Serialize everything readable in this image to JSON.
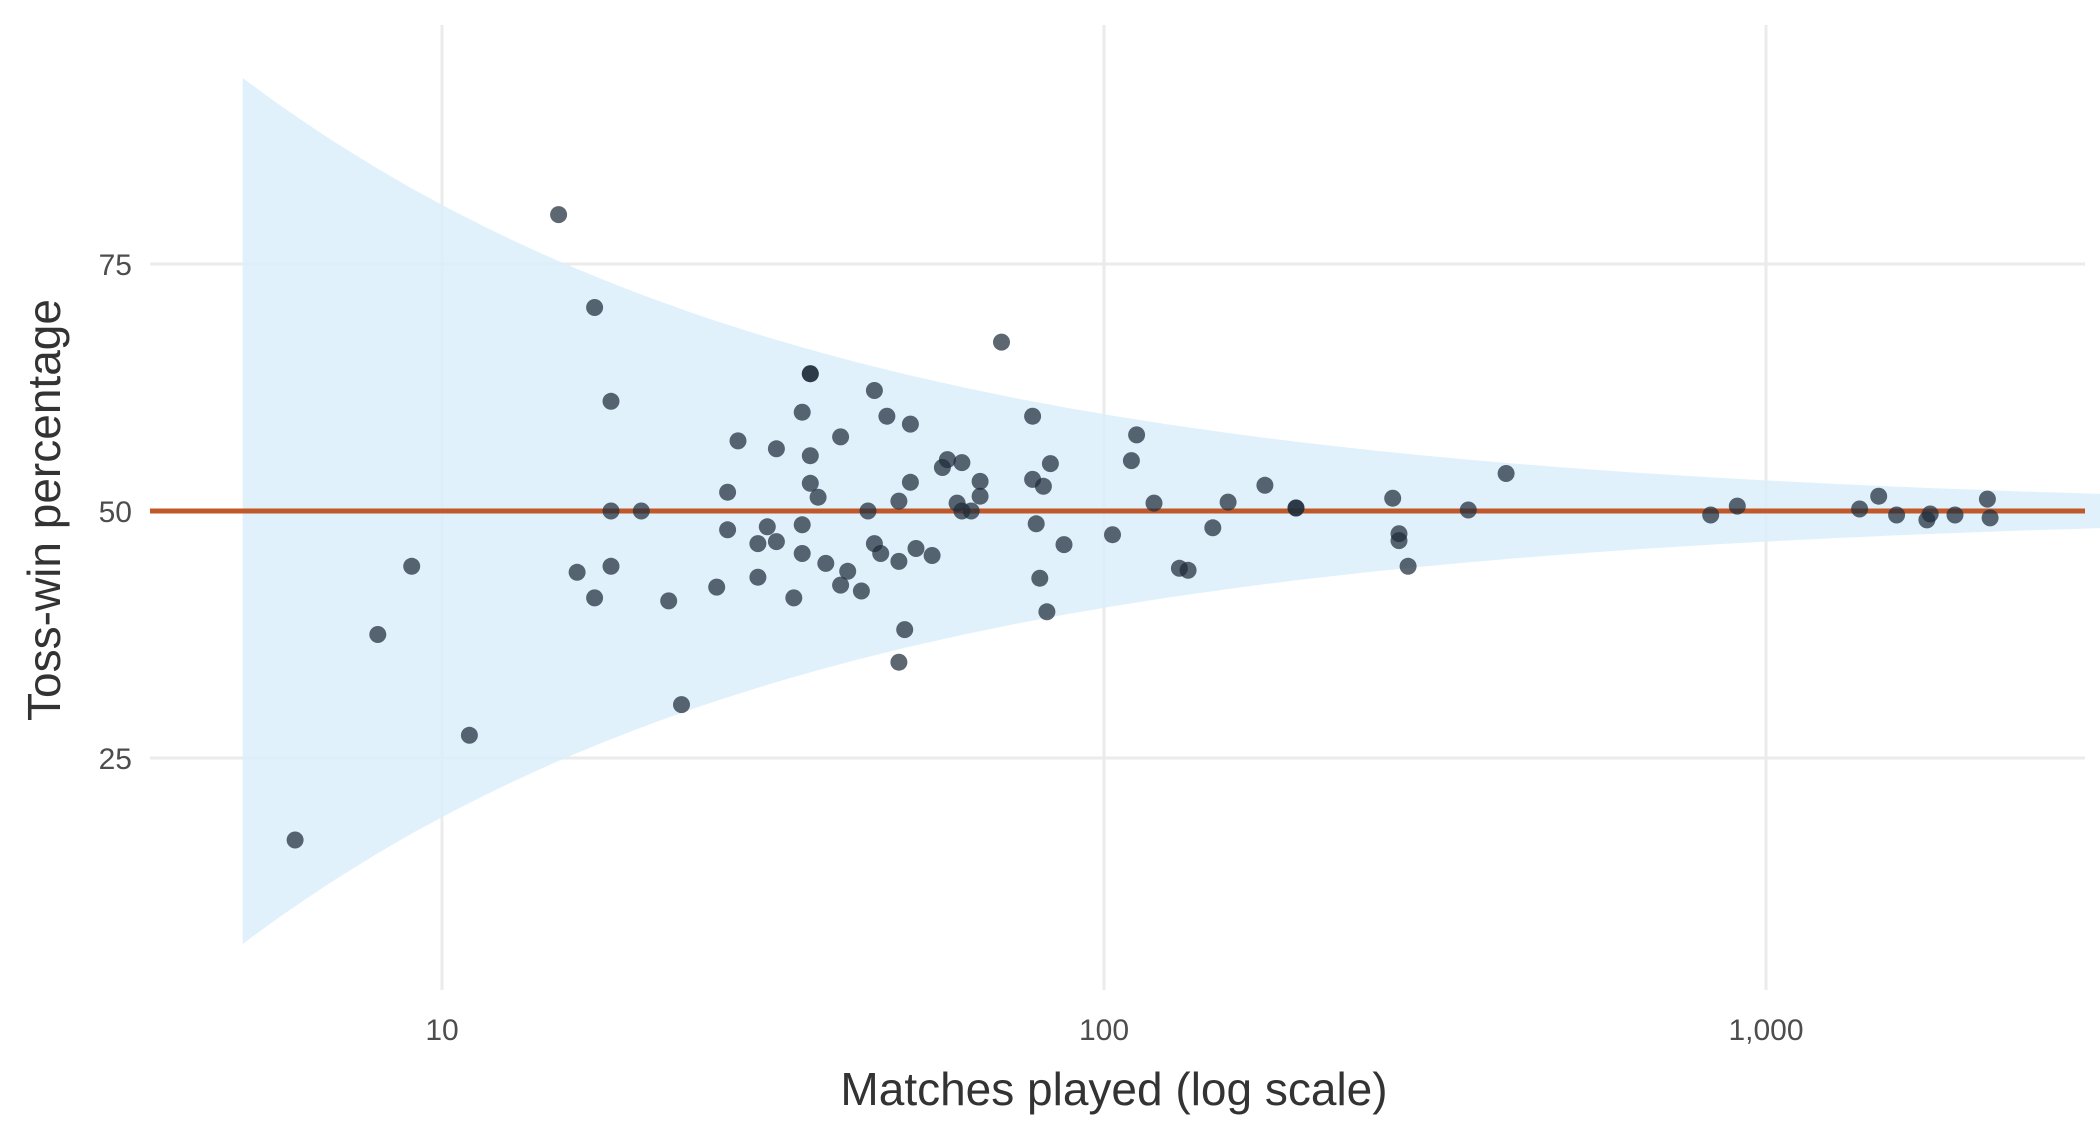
{
  "chart_data": {
    "type": "scatter",
    "title": "",
    "xlabel": "Matches played (log scale)",
    "ylabel": "Toss-win percentage",
    "x_scale": "log10",
    "xlim": [
      3.3,
      3300
    ],
    "ylim": [
      0,
      100
    ],
    "x_ticks": [
      {
        "value": 10,
        "label": "10"
      },
      {
        "value": 100,
        "label": "100"
      },
      {
        "value": 1000,
        "label": "1,000"
      }
    ],
    "y_ticks": [
      {
        "value": 25,
        "label": "25"
      },
      {
        "value": 50,
        "label": "50"
      },
      {
        "value": 75,
        "label": "75"
      }
    ],
    "grid": true,
    "reference_line": {
      "y": 50,
      "color": "#c0582a"
    },
    "band": {
      "type": "95% binomial interval around 50%",
      "color": "#dbeefb",
      "x_range": [
        5,
        3300
      ]
    },
    "point_color": "#1f2d3a",
    "points": [
      {
        "x": 6,
        "y": 16.7
      },
      {
        "x": 8,
        "y": 37.5
      },
      {
        "x": 9,
        "y": 44.4
      },
      {
        "x": 11,
        "y": 27.3
      },
      {
        "x": 15,
        "y": 80.0
      },
      {
        "x": 16,
        "y": 43.8
      },
      {
        "x": 17,
        "y": 70.6
      },
      {
        "x": 17,
        "y": 41.2
      },
      {
        "x": 18,
        "y": 61.1
      },
      {
        "x": 18,
        "y": 50.0
      },
      {
        "x": 18,
        "y": 44.4
      },
      {
        "x": 20,
        "y": 50.0
      },
      {
        "x": 22,
        "y": 40.9
      },
      {
        "x": 23,
        "y": 30.4
      },
      {
        "x": 26,
        "y": 42.3
      },
      {
        "x": 27,
        "y": 51.9
      },
      {
        "x": 27,
        "y": 48.1
      },
      {
        "x": 28,
        "y": 57.1
      },
      {
        "x": 30,
        "y": 46.7
      },
      {
        "x": 30,
        "y": 43.3
      },
      {
        "x": 31,
        "y": 48.4
      },
      {
        "x": 32,
        "y": 56.3
      },
      {
        "x": 32,
        "y": 46.9
      },
      {
        "x": 34,
        "y": 41.2
      },
      {
        "x": 35,
        "y": 60.0
      },
      {
        "x": 35,
        "y": 48.6
      },
      {
        "x": 35,
        "y": 45.7
      },
      {
        "x": 36,
        "y": 63.9
      },
      {
        "x": 36,
        "y": 63.9
      },
      {
        "x": 36,
        "y": 55.6
      },
      {
        "x": 36,
        "y": 52.8
      },
      {
        "x": 37,
        "y": 51.4
      },
      {
        "x": 38,
        "y": 44.7
      },
      {
        "x": 40,
        "y": 57.5
      },
      {
        "x": 40,
        "y": 42.5
      },
      {
        "x": 41,
        "y": 43.9
      },
      {
        "x": 43,
        "y": 41.9
      },
      {
        "x": 44,
        "y": 50.0
      },
      {
        "x": 45,
        "y": 62.2
      },
      {
        "x": 45,
        "y": 46.7
      },
      {
        "x": 46,
        "y": 45.7
      },
      {
        "x": 47,
        "y": 59.6
      },
      {
        "x": 49,
        "y": 51.0
      },
      {
        "x": 49,
        "y": 44.9
      },
      {
        "x": 49,
        "y": 34.7
      },
      {
        "x": 50,
        "y": 38.0
      },
      {
        "x": 51,
        "y": 58.8
      },
      {
        "x": 51,
        "y": 52.9
      },
      {
        "x": 52,
        "y": 46.2
      },
      {
        "x": 55,
        "y": 45.5
      },
      {
        "x": 57,
        "y": 54.4
      },
      {
        "x": 58,
        "y": 55.2
      },
      {
        "x": 60,
        "y": 50.8
      },
      {
        "x": 61,
        "y": 54.9
      },
      {
        "x": 61,
        "y": 50.0
      },
      {
        "x": 63,
        "y": 50.0
      },
      {
        "x": 65,
        "y": 53.0
      },
      {
        "x": 65,
        "y": 51.5
      },
      {
        "x": 70,
        "y": 67.1
      },
      {
        "x": 78,
        "y": 59.6
      },
      {
        "x": 78,
        "y": 53.2
      },
      {
        "x": 79,
        "y": 48.7
      },
      {
        "x": 80,
        "y": 43.2
      },
      {
        "x": 81,
        "y": 52.5
      },
      {
        "x": 82,
        "y": 39.8
      },
      {
        "x": 83,
        "y": 54.8
      },
      {
        "x": 87,
        "y": 46.6
      },
      {
        "x": 103,
        "y": 47.6
      },
      {
        "x": 110,
        "y": 55.1
      },
      {
        "x": 112,
        "y": 57.7
      },
      {
        "x": 119,
        "y": 50.8
      },
      {
        "x": 130,
        "y": 44.2
      },
      {
        "x": 134,
        "y": 44.0
      },
      {
        "x": 146,
        "y": 48.3
      },
      {
        "x": 154,
        "y": 50.9
      },
      {
        "x": 175,
        "y": 52.6
      },
      {
        "x": 195,
        "y": 50.3
      },
      {
        "x": 195,
        "y": 50.3
      },
      {
        "x": 273,
        "y": 51.3
      },
      {
        "x": 279,
        "y": 47.7
      },
      {
        "x": 279,
        "y": 47.0
      },
      {
        "x": 288,
        "y": 44.4
      },
      {
        "x": 355,
        "y": 50.1
      },
      {
        "x": 405,
        "y": 53.8
      },
      {
        "x": 825,
        "y": 49.6
      },
      {
        "x": 905,
        "y": 50.5
      },
      {
        "x": 1385,
        "y": 50.2
      },
      {
        "x": 1480,
        "y": 51.5
      },
      {
        "x": 1575,
        "y": 49.6
      },
      {
        "x": 1750,
        "y": 49.1
      },
      {
        "x": 1770,
        "y": 49.7
      },
      {
        "x": 1930,
        "y": 49.6
      },
      {
        "x": 2160,
        "y": 51.2
      },
      {
        "x": 2180,
        "y": 49.3
      }
    ]
  }
}
